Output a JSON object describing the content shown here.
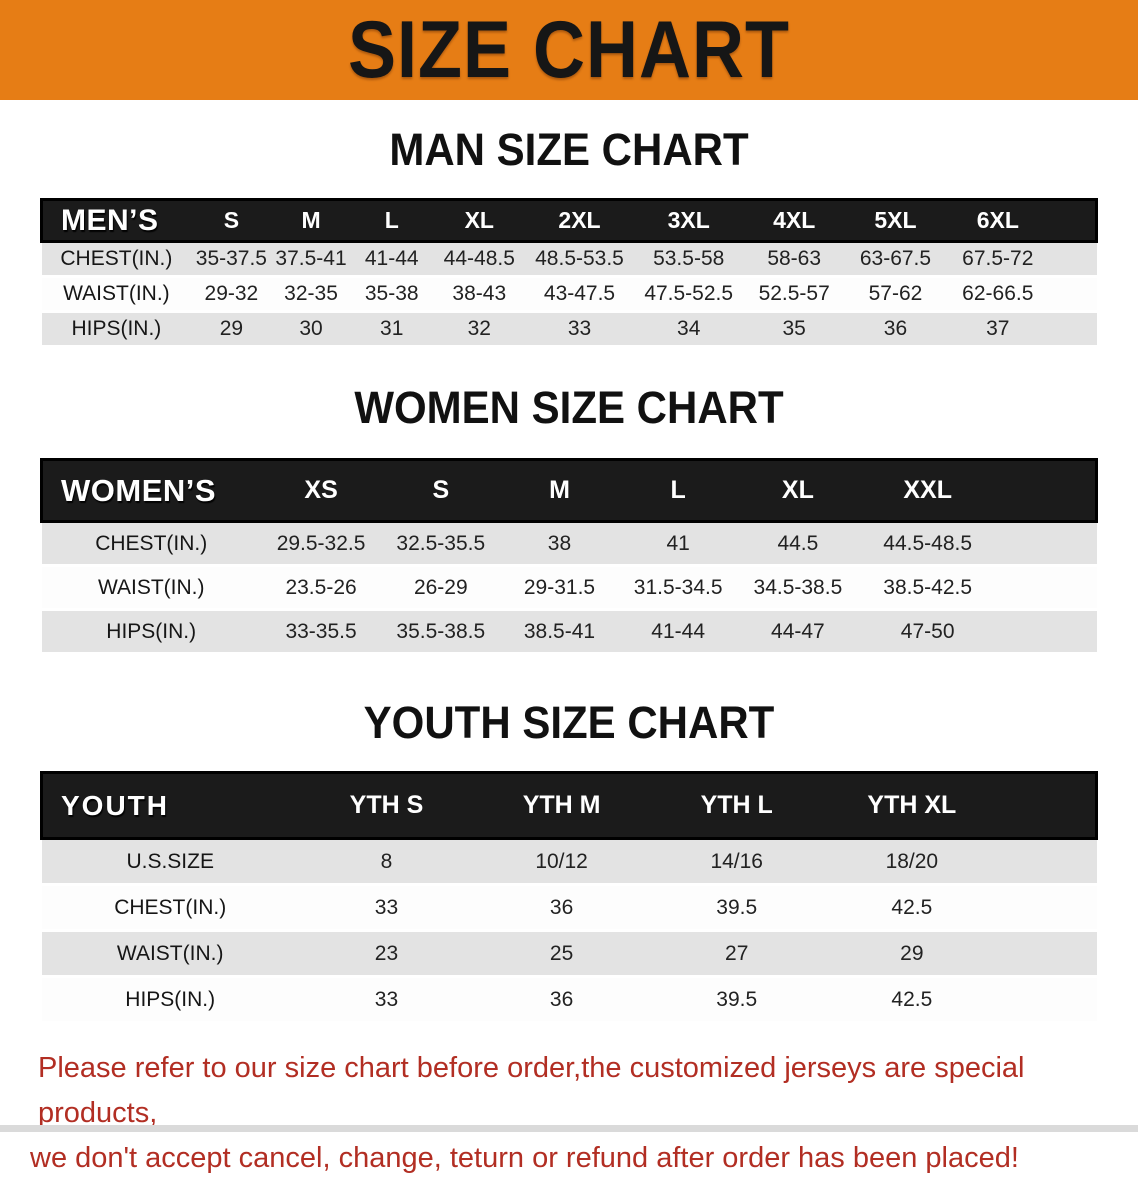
{
  "banner": {
    "title": "SIZE CHART"
  },
  "colors": {
    "banner_bg": "#e67d15",
    "header_bar": "#1b1b1b",
    "row_shade": "#e3e3e3",
    "footer_text": "#b22e23"
  },
  "sections": [
    {
      "id": "men",
      "title": "MAN SIZE CHART",
      "table": {
        "corner_label": "MEN’S",
        "columns": [
          "S",
          "M",
          "L",
          "XL",
          "2XL",
          "3XL",
          "4XL",
          "5XL",
          "6XL"
        ],
        "rows": [
          {
            "label": "CHEST(IN.)",
            "values": [
              "35-37.5",
              "37.5-41",
              "41-44",
              "44-48.5",
              "48.5-53.5",
              "53.5-58",
              "58-63",
              "63-67.5",
              "67.5-72"
            ]
          },
          {
            "label": "WAIST(IN.)",
            "values": [
              "29-32",
              "32-35",
              "35-38",
              "38-43",
              "43-47.5",
              "47.5-52.5",
              "52.5-57",
              "57-62",
              "62-66.5"
            ]
          },
          {
            "label": "HIPS(IN.)",
            "values": [
              "29",
              "30",
              "31",
              "32",
              "33",
              "34",
              "35",
              "36",
              "37"
            ]
          }
        ]
      }
    },
    {
      "id": "women",
      "title": "WOMEN SIZE CHART",
      "table": {
        "corner_label": "WOMEN’S",
        "columns": [
          "XS",
          "S",
          "M",
          "L",
          "XL",
          "XXL"
        ],
        "rows": [
          {
            "label": "CHEST(IN.)",
            "values": [
              "29.5-32.5",
              "32.5-35.5",
              "38",
              "41",
              "44.5",
              "44.5-48.5"
            ]
          },
          {
            "label": "WAIST(IN.)",
            "values": [
              "23.5-26",
              "26-29",
              "29-31.5",
              "31.5-34.5",
              "34.5-38.5",
              "38.5-42.5"
            ]
          },
          {
            "label": "HIPS(IN.)",
            "values": [
              "33-35.5",
              "35.5-38.5",
              "38.5-41",
              "41-44",
              "44-47",
              "47-50"
            ]
          }
        ]
      }
    },
    {
      "id": "youth",
      "title": "YOUTH SIZE CHART",
      "table": {
        "corner_label": "YOUTH",
        "columns": [
          "YTH S",
          "YTH M",
          "YTH L",
          "YTH XL"
        ],
        "rows": [
          {
            "label": "U.S.SIZE",
            "values": [
              "8",
              "10/12",
              "14/16",
              "18/20"
            ]
          },
          {
            "label": "CHEST(IN.)",
            "values": [
              "33",
              "36",
              "39.5",
              "42.5"
            ]
          },
          {
            "label": "WAIST(IN.)",
            "values": [
              "23",
              "25",
              "27",
              "29"
            ]
          },
          {
            "label": "HIPS(IN.)",
            "values": [
              "33",
              "36",
              "39.5",
              "42.5"
            ]
          }
        ]
      }
    }
  ],
  "footer": {
    "line1": "Please refer to our size chart before order,the customized jerseys are special products,",
    "line2": "we don't accept cancel, change, teturn or refund after order has been placed!"
  }
}
